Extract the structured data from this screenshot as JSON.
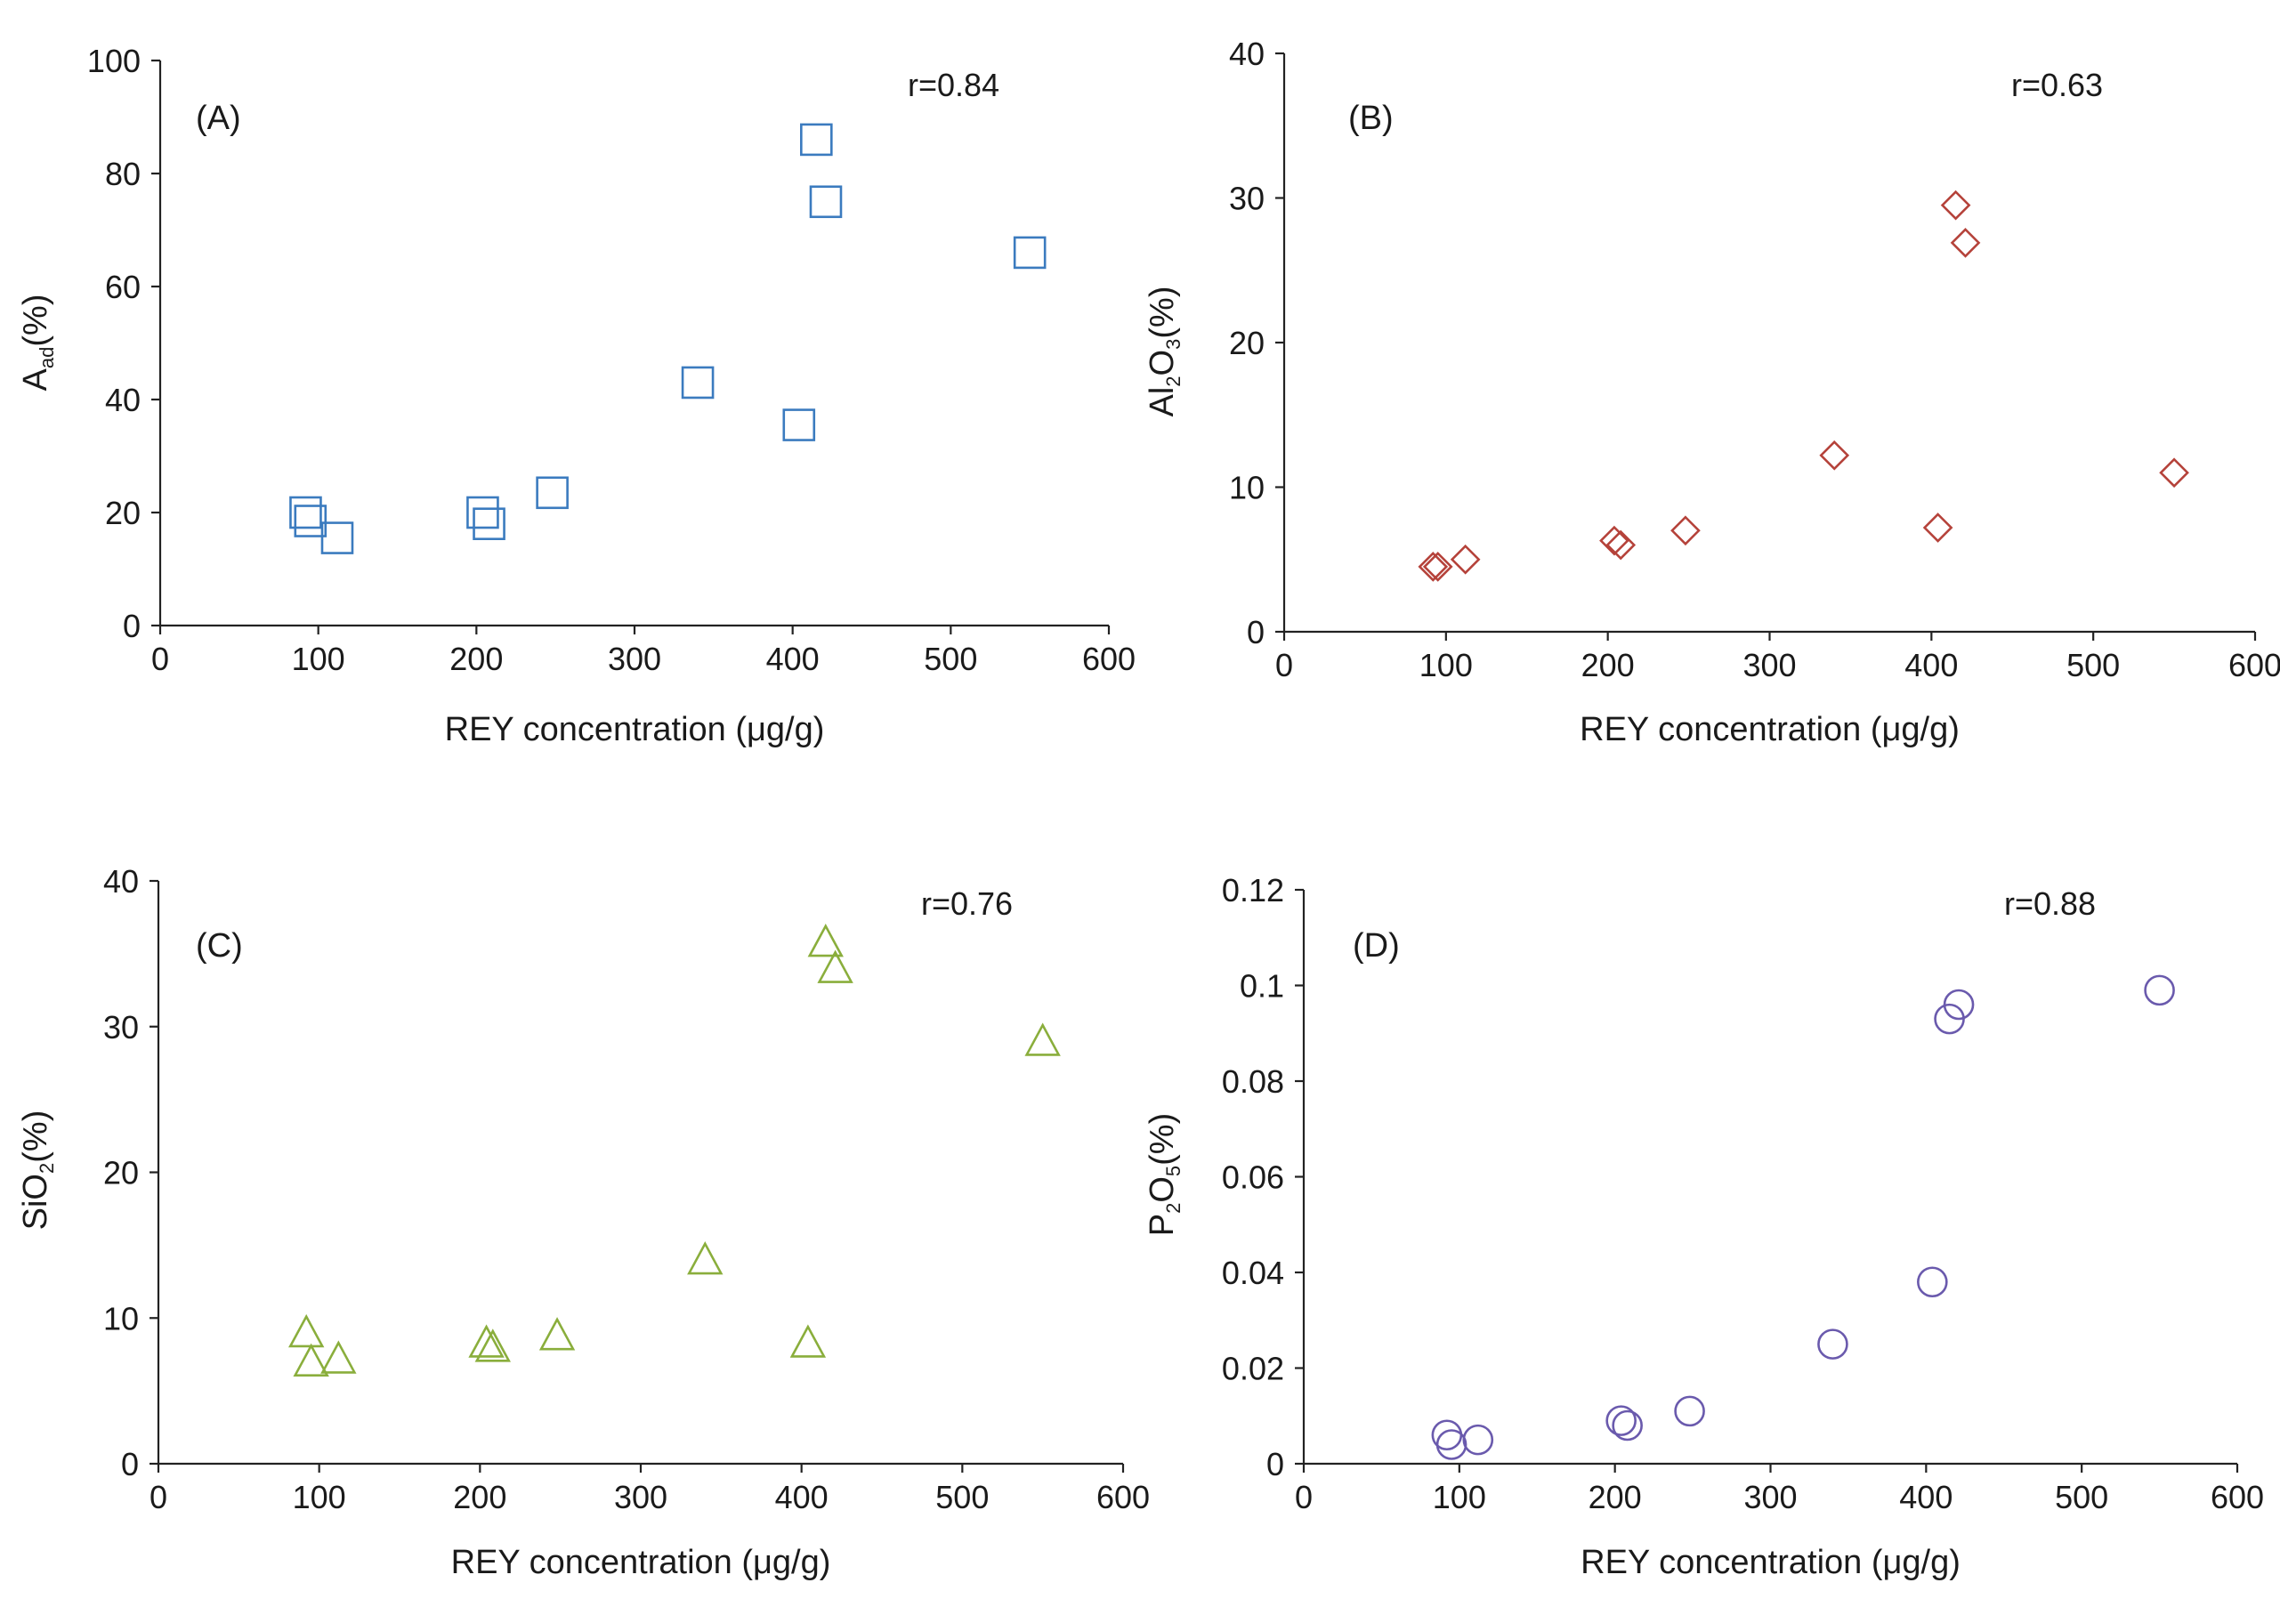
{
  "chart_data": [
    {
      "id": "A",
      "type": "scatter",
      "panel_label": "(A)",
      "annotation": "r=0.84",
      "marker": "square",
      "color": "#3b7bbf",
      "xlabel": "REY concentration (μg/g)",
      "ylabel": {
        "base": "A",
        "sub": "ad",
        "rest": "(%)"
      },
      "xlim": [
        0,
        600
      ],
      "ylim": [
        0,
        100
      ],
      "xticks": [
        0,
        100,
        200,
        300,
        400,
        500,
        600
      ],
      "yticks": [
        0,
        20,
        40,
        60,
        80,
        100
      ],
      "ytick_labels": [
        "0",
        "20",
        "40",
        "60",
        "80",
        "100"
      ],
      "x": [
        92,
        95,
        112,
        204,
        208,
        248,
        340,
        404,
        415,
        421,
        550
      ],
      "y": [
        20,
        18.5,
        15.5,
        20,
        18,
        23.5,
        43,
        35.5,
        86,
        75,
        66
      ]
    },
    {
      "id": "B",
      "type": "scatter",
      "panel_label": "(B)",
      "annotation": "r=0.63",
      "marker": "diamond",
      "color": "#b5423a",
      "xlabel": "REY concentration (μg/g)",
      "ylabel": {
        "base": "Al",
        "sub": "2",
        "mid": "O",
        "sub2": "3",
        "rest": "(%)"
      },
      "xlim": [
        0,
        600
      ],
      "ylim": [
        0,
        40
      ],
      "xticks": [
        0,
        100,
        200,
        300,
        400,
        500,
        600
      ],
      "yticks": [
        0,
        10,
        20,
        30,
        40
      ],
      "ytick_labels": [
        "0",
        "10",
        "20",
        "30",
        "40"
      ],
      "x": [
        92,
        95,
        112,
        204,
        208,
        248,
        340,
        404,
        415,
        421,
        550
      ],
      "y": [
        4.5,
        4.5,
        5,
        6.3,
        6,
        7,
        12.2,
        7.2,
        29.5,
        26.9,
        11
      ]
    },
    {
      "id": "C",
      "type": "scatter",
      "panel_label": "(C)",
      "annotation": "r=0.76",
      "marker": "triangle",
      "color": "#8aae3c",
      "xlabel": "REY concentration (μg/g)",
      "ylabel": {
        "base": "SiO",
        "sub": "2",
        "rest": "(%)"
      },
      "xlim": [
        0,
        600
      ],
      "ylim": [
        0,
        40
      ],
      "xticks": [
        0,
        100,
        200,
        300,
        400,
        500,
        600
      ],
      "yticks": [
        0,
        10,
        20,
        30,
        40
      ],
      "ytick_labels": [
        "0",
        "10",
        "20",
        "30",
        "40"
      ],
      "x": [
        92,
        95,
        112,
        204,
        208,
        248,
        340,
        404,
        415,
        421,
        550
      ],
      "y": [
        9,
        7,
        7.2,
        8.3,
        8,
        8.8,
        14,
        8.3,
        35.8,
        34,
        29
      ]
    },
    {
      "id": "D",
      "type": "scatter",
      "panel_label": "(D)",
      "annotation": "r=0.88",
      "marker": "circle",
      "color": "#6a5aad",
      "xlabel": "REY concentration (μg/g)",
      "ylabel": {
        "base": "P",
        "sub": "2",
        "mid": "O",
        "sub2": "5",
        "rest": "(%)"
      },
      "xlim": [
        0,
        600
      ],
      "ylim": [
        0,
        0.12
      ],
      "xticks": [
        0,
        100,
        200,
        300,
        400,
        500,
        600
      ],
      "yticks": [
        0,
        0.02,
        0.04,
        0.06,
        0.08,
        0.1,
        0.12
      ],
      "ytick_labels": [
        "0",
        "0.02",
        "0.04",
        "0.06",
        "0.08",
        "0.1",
        "0.12"
      ],
      "x": [
        92,
        95,
        112,
        204,
        208,
        248,
        340,
        404,
        415,
        421,
        550
      ],
      "y": [
        0.006,
        0.004,
        0.005,
        0.009,
        0.008,
        0.011,
        0.025,
        0.038,
        0.093,
        0.096,
        0.099
      ]
    }
  ]
}
